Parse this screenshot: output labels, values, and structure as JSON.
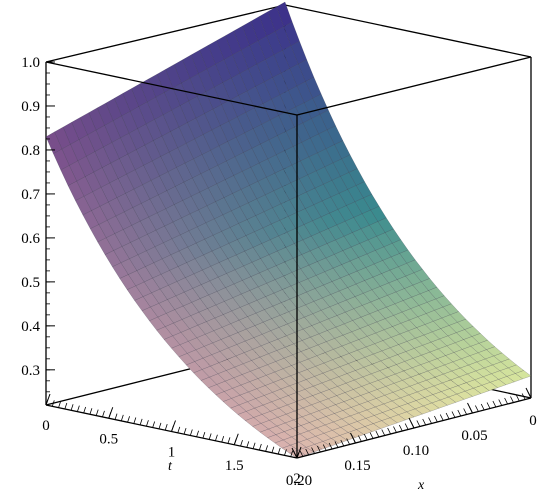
{
  "chart_data": {
    "type": "surface3d",
    "title": "",
    "xlabel": "x",
    "tlabel": "t",
    "zlabel": "",
    "x_range": [
      0,
      0.2
    ],
    "t_range": [
      0,
      2
    ],
    "z_range": [
      0.22,
      1.0
    ],
    "x_ticks": [
      "0",
      "0.05",
      "0.10",
      "0.15",
      "0.20"
    ],
    "t_ticks": [
      "0",
      "0.5",
      "1",
      "1.5",
      "2"
    ],
    "z_ticks": [
      "0.3",
      "0.4",
      "0.5",
      "0.6",
      "0.7",
      "0.8",
      "0.9",
      "1.0"
    ],
    "corner_values": [
      {
        "x": 0,
        "t": 0,
        "z": 1.0
      },
      {
        "x": 0.2,
        "t": 0,
        "z": 0.83
      },
      {
        "x": 0,
        "t": 2,
        "z": 0.27
      },
      {
        "x": 0.2,
        "t": 2,
        "z": 0.22
      }
    ],
    "surface_colors": {
      "low": "#f0f4a0",
      "mid": "#3a8a8e",
      "high": "#3d2d8a",
      "left_high": "#6a2f7e",
      "left_low": "#d8a8b2"
    },
    "grid": true,
    "box": true
  },
  "labels": {
    "x_axis": "x",
    "t_axis": "t"
  }
}
